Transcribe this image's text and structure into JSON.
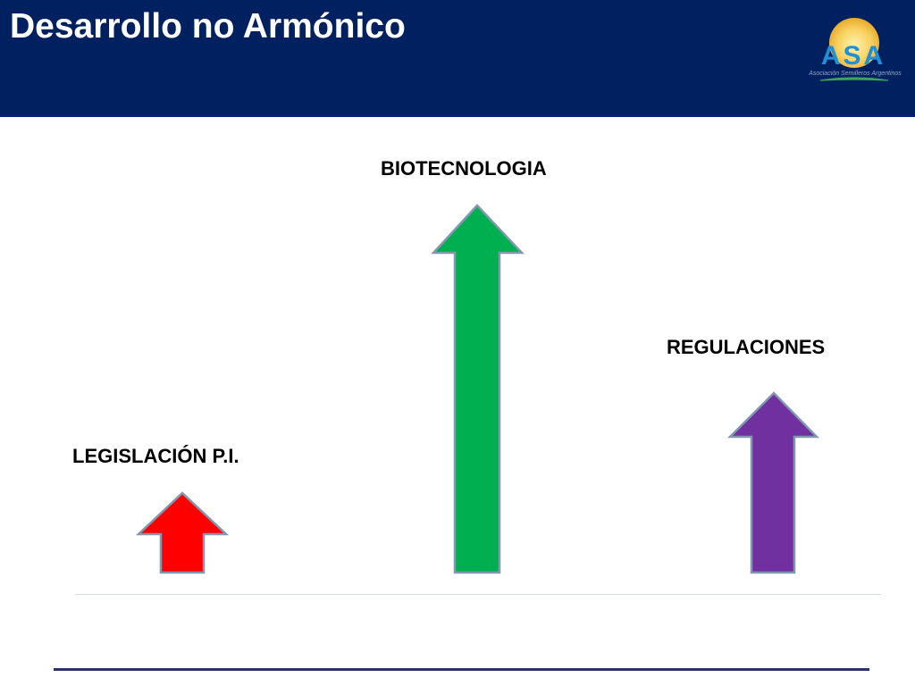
{
  "slide": {
    "title": "Desarrollo no Armónico"
  },
  "logo": {
    "text": "ASA",
    "subtitle": "Asociación Semilleros Argentinos",
    "colors": {
      "sun": "#f5c542",
      "letters": "#1f8fd6",
      "swoosh": "#3aa656"
    }
  },
  "arrows": [
    {
      "id": "legislacion",
      "label": "LEGISLACIÓN P.I.",
      "color": "#ff0000",
      "level": "low"
    },
    {
      "id": "biotecnologia",
      "label": "BIOTECNOLOGIA",
      "color": "#00b050",
      "level": "high"
    },
    {
      "id": "regulaciones",
      "label": "REGULACIONES",
      "color": "#7030a0",
      "level": "medium"
    }
  ],
  "colors": {
    "header_bg": "#002060",
    "arrow_outline": "#8497b0",
    "footer_rule": "#2e2f6e"
  }
}
